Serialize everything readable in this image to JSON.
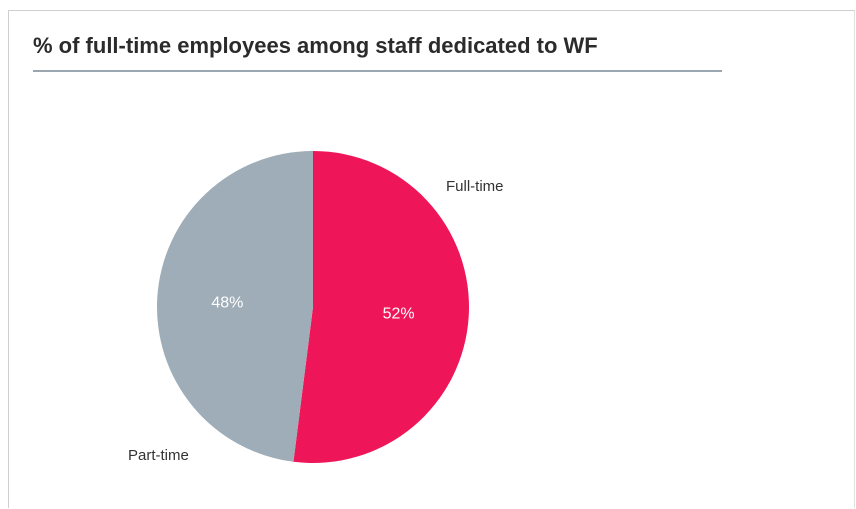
{
  "header": {
    "title": "% of full-time employees among staff dedicated to WF"
  },
  "chart_data": {
    "type": "pie",
    "title": "% of full-time employees among staff dedicated to WF",
    "slices": [
      {
        "label": "Full-time",
        "value": 52,
        "value_label": "52%",
        "color": "#ef1559"
      },
      {
        "label": "Part-time",
        "value": 48,
        "value_label": "48%",
        "color": "#9eadb7"
      }
    ],
    "start_angle_deg": 0,
    "direction": "clockwise",
    "legend": "none"
  }
}
